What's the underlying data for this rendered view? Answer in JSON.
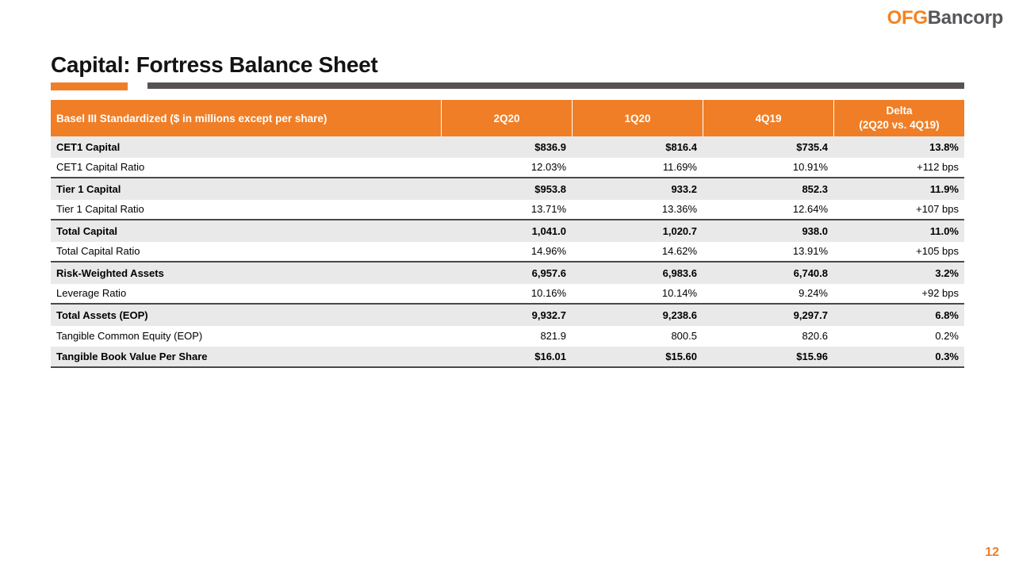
{
  "logo": {
    "primary": "OFG",
    "secondary": "Bancorp"
  },
  "title": "Capital: Fortress Balance Sheet",
  "page_number": "12",
  "colors": {
    "accent_orange": "#EF7E26",
    "logo_orange": "#F58220",
    "logo_gray": "#55565A",
    "bar_dark_gray": "#565352",
    "row_shaded_gray": "#EAE9E9",
    "divider_dark": "#494949",
    "header_text": "#FFFFFF",
    "body_text": "#000000"
  },
  "table": {
    "header": {
      "label": "Basel III Standardized ($ in millions except per share)",
      "columns": [
        "2Q20",
        "1Q20",
        "4Q19"
      ],
      "delta_line1": "Delta",
      "delta_line2": "(2Q20 vs. 4Q19)"
    },
    "rows": [
      {
        "label": "CET1 Capital",
        "bold": true,
        "divider": false,
        "values": [
          "$836.9",
          "$816.4",
          "$735.4",
          "13.8%"
        ]
      },
      {
        "label": "CET1 Capital Ratio",
        "bold": false,
        "divider": true,
        "values": [
          "12.03%",
          "11.69%",
          "10.91%",
          "+112 bps"
        ]
      },
      {
        "label": "Tier 1 Capital",
        "bold": true,
        "divider": false,
        "values": [
          "$953.8",
          "933.2",
          "852.3",
          "11.9%"
        ]
      },
      {
        "label": "Tier 1 Capital Ratio",
        "bold": false,
        "divider": true,
        "values": [
          "13.71%",
          "13.36%",
          "12.64%",
          "+107 bps"
        ]
      },
      {
        "label": "Total Capital",
        "bold": true,
        "divider": false,
        "values": [
          "1,041.0",
          "1,020.7",
          "938.0",
          "11.0%"
        ]
      },
      {
        "label": "Total Capital Ratio",
        "bold": false,
        "divider": true,
        "values": [
          "14.96%",
          "14.62%",
          "13.91%",
          "+105 bps"
        ]
      },
      {
        "label": "Risk-Weighted Assets",
        "bold": true,
        "divider": false,
        "values": [
          "6,957.6",
          "6,983.6",
          "6,740.8",
          "3.2%"
        ]
      },
      {
        "label": "Leverage Ratio",
        "bold": false,
        "divider": true,
        "values": [
          "10.16%",
          "10.14%",
          "9.24%",
          "+92 bps"
        ]
      },
      {
        "label": "Total Assets (EOP)",
        "bold": true,
        "divider": false,
        "values": [
          "9,932.7",
          "9,238.6",
          "9,297.7",
          "6.8%"
        ]
      },
      {
        "label": "Tangible Common Equity (EOP)",
        "bold": false,
        "divider": false,
        "values": [
          "821.9",
          "800.5",
          "820.6",
          "0.2%"
        ]
      },
      {
        "label": "Tangible Book Value Per Share",
        "bold": true,
        "divider": true,
        "values": [
          "$16.01",
          "$15.60",
          "$15.96",
          "0.3%"
        ]
      }
    ]
  }
}
